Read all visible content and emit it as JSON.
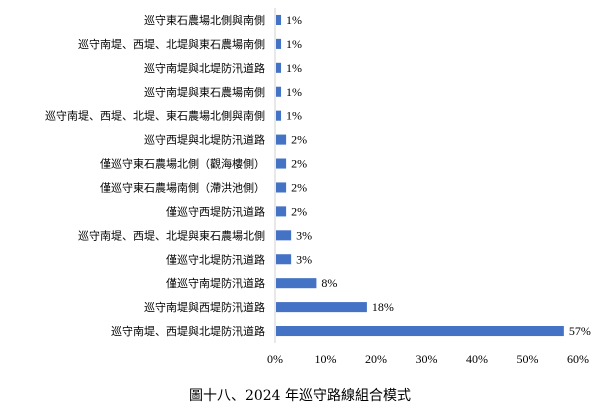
{
  "chart_data": {
    "type": "bar",
    "orientation": "horizontal",
    "title": "圖十八、2024 年巡守路線組合模式",
    "xlabel": "",
    "ylabel": "",
    "xlim": [
      0,
      60
    ],
    "x_ticks": [
      "0%",
      "10%",
      "20%",
      "30%",
      "40%",
      "50%",
      "60%"
    ],
    "grid": false,
    "legend": "none",
    "bar_color": "#4472C4",
    "categories": [
      "巡守東石農場北側與南側",
      "巡守南堤、西堤、北堤與東石農場南側",
      "巡守南堤與北堤防汛道路",
      "巡守南堤與東石農場南側",
      "巡守南堤、西堤、北堤、東石農場北側與南側",
      "巡守西堤與北堤防汛道路",
      "僅巡守東石農場北側（觀海樓側）",
      "僅巡守東石農場南側（滯洪池側）",
      "僅巡守西堤防汛道路",
      "巡守南堤、西堤、北堤與東石農場北側",
      "僅巡守北堤防汛道路",
      "僅巡守南堤防汛道路",
      "巡守南堤與西堤防汛道路",
      "巡守南堤、西堤與北堤防汛道路"
    ],
    "values": [
      1,
      1,
      1,
      1,
      1,
      2,
      2,
      2,
      2,
      3,
      3,
      8,
      18,
      57
    ],
    "value_labels": [
      "1%",
      "1%",
      "1%",
      "1%",
      "1%",
      "2%",
      "2%",
      "2%",
      "2%",
      "3%",
      "3%",
      "8%",
      "18%",
      "57%"
    ]
  }
}
